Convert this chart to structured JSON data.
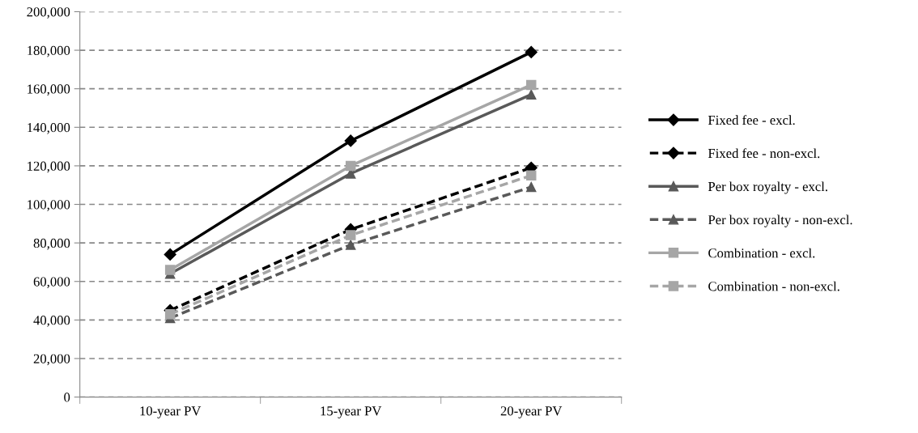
{
  "chart_data": {
    "type": "line",
    "categories": [
      "10-year PV",
      "15-year PV",
      "20-year PV"
    ],
    "series": [
      {
        "name": "Fixed fee - excl.",
        "color": "#000000",
        "marker": "diamond",
        "line_style": "solid",
        "values": [
          74000,
          133000,
          179000
        ]
      },
      {
        "name": "Fixed fee - non-excl.",
        "color": "#000000",
        "marker": "diamond",
        "line_style": "dashed",
        "values": [
          45000,
          87000,
          119000
        ]
      },
      {
        "name": "Per box royalty - excl.",
        "color": "#595959",
        "marker": "triangle",
        "line_style": "solid",
        "values": [
          64000,
          116000,
          157000
        ]
      },
      {
        "name": "Per box royalty - non-excl.",
        "color": "#595959",
        "marker": "triangle",
        "line_style": "dashed",
        "values": [
          41000,
          79000,
          109000
        ]
      },
      {
        "name": "Combination - excl.",
        "color": "#a6a6a6",
        "marker": "square",
        "line_style": "solid",
        "values": [
          66000,
          120000,
          162000
        ]
      },
      {
        "name": "Combination - non-excl.",
        "color": "#a6a6a6",
        "marker": "square",
        "line_style": "dashed",
        "values": [
          43000,
          84000,
          115000
        ]
      }
    ],
    "ylim": [
      0,
      200000
    ],
    "yticks": [
      {
        "value": 0,
        "label": "0"
      },
      {
        "value": 20000,
        "label": "20,000"
      },
      {
        "value": 40000,
        "label": "40,000"
      },
      {
        "value": 60000,
        "label": "60,000"
      },
      {
        "value": 80000,
        "label": "80,000"
      },
      {
        "value": 100000,
        "label": "100,000"
      },
      {
        "value": 120000,
        "label": "120,000"
      },
      {
        "value": 140000,
        "label": "140,000"
      },
      {
        "value": 160000,
        "label": "160,000"
      },
      {
        "value": 180000,
        "label": "180,000"
      },
      {
        "value": 200000,
        "label": "200,000"
      }
    ],
    "grid": "y",
    "legend": "right"
  }
}
